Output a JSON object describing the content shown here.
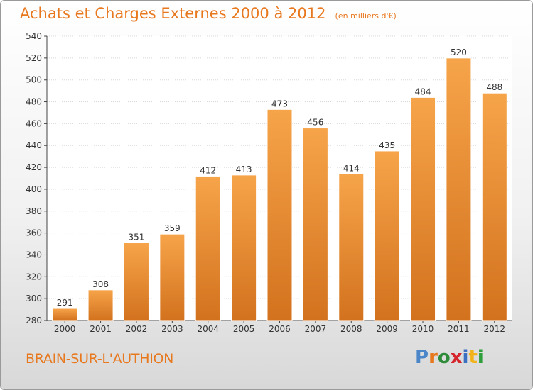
{
  "title": "Achats et Charges Externes 2000 à 2012",
  "unit_note": "(en milliers d'€)",
  "city": "BRAIN-SUR-L'AUTHION",
  "logo": {
    "text": "Proxiti",
    "letter_colors": [
      "#4a86c8",
      "#e8781e",
      "#2e8b3a",
      "#d6262d",
      "#3a6fc1",
      "#f2b21a",
      "#2e9f3b"
    ]
  },
  "colors": {
    "bar_light": "#f6a44a",
    "bar_dark": "#d3721e",
    "title": "#e8781e",
    "grid": "#d8d8d8",
    "axis": "#444444"
  },
  "chart_data": {
    "type": "bar",
    "categories": [
      "2000",
      "2001",
      "2002",
      "2003",
      "2004",
      "2005",
      "2006",
      "2007",
      "2008",
      "2009",
      "2010",
      "2011",
      "2012"
    ],
    "values": [
      291,
      308,
      351,
      359,
      412,
      413,
      473,
      456,
      414,
      435,
      484,
      520,
      488
    ],
    "ylim": [
      280,
      540
    ],
    "yticks": [
      280,
      300,
      320,
      340,
      360,
      380,
      400,
      420,
      440,
      460,
      480,
      500,
      520,
      540
    ],
    "grid": true,
    "data_labels": true
  }
}
